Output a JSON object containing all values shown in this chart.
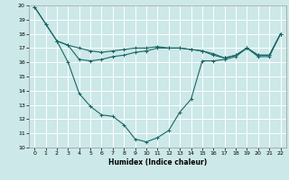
{
  "xlabel": "Humidex (Indice chaleur)",
  "bg_color": "#cce8e8",
  "grid_color": "#ffffff",
  "line_color": "#1a6666",
  "xlim": [
    -0.5,
    22.5
  ],
  "ylim": [
    10,
    20
  ],
  "xticks": [
    0,
    1,
    2,
    3,
    4,
    5,
    6,
    7,
    8,
    9,
    10,
    11,
    12,
    13,
    14,
    15,
    16,
    17,
    18,
    19,
    20,
    21,
    22
  ],
  "yticks": [
    10,
    11,
    12,
    13,
    14,
    15,
    16,
    17,
    18,
    19,
    20
  ],
  "line1_x": [
    0,
    1,
    2,
    3,
    4,
    5,
    6,
    7,
    8,
    9,
    10,
    11,
    12,
    13,
    14,
    15,
    16,
    17,
    18,
    19,
    20,
    21,
    22
  ],
  "line1_y": [
    19.9,
    18.7,
    17.5,
    16.0,
    13.8,
    12.9,
    12.3,
    12.2,
    11.6,
    10.6,
    10.4,
    10.7,
    11.2,
    12.5,
    13.4,
    16.1,
    16.1,
    16.2,
    16.4,
    17.0,
    16.4,
    16.4,
    18.0
  ],
  "line2_x": [
    0,
    1,
    2,
    3,
    4,
    5,
    6,
    7,
    8,
    9,
    10,
    11,
    12,
    13,
    14,
    15,
    16,
    17,
    18,
    19,
    20,
    21,
    22
  ],
  "line2_y": [
    19.9,
    18.7,
    17.5,
    17.2,
    17.0,
    16.8,
    16.7,
    16.8,
    16.9,
    17.0,
    17.0,
    17.1,
    17.0,
    17.0,
    16.9,
    16.8,
    16.5,
    16.3,
    16.5,
    17.0,
    16.5,
    16.5,
    18.0
  ],
  "line3_x": [
    2,
    3,
    4,
    5,
    6,
    7,
    8,
    9,
    10,
    11,
    12,
    13,
    14,
    15,
    16,
    17,
    18,
    19,
    20,
    21,
    22
  ],
  "line3_y": [
    17.5,
    17.2,
    16.2,
    16.1,
    16.2,
    16.4,
    16.5,
    16.7,
    16.8,
    17.0,
    17.0,
    17.0,
    16.9,
    16.8,
    16.6,
    16.3,
    16.5,
    17.0,
    16.5,
    16.5,
    18.0
  ]
}
